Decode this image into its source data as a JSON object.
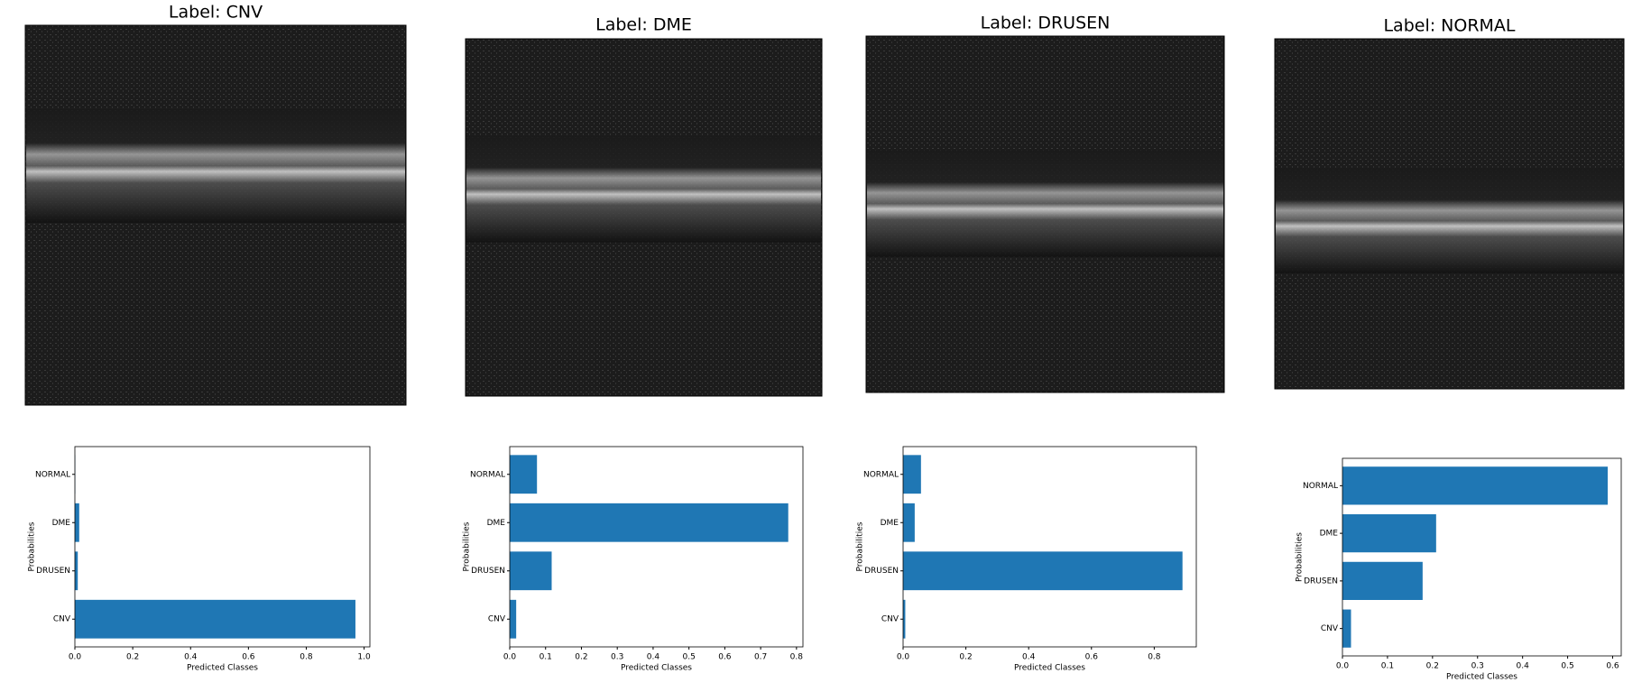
{
  "images": [
    {
      "title": "Label: CNV"
    },
    {
      "title": "Label: DME"
    },
    {
      "title": "Label: DRUSEN"
    },
    {
      "title": "Label: NORMAL"
    }
  ],
  "chart_data": [
    {
      "type": "barh",
      "xlabel": "Predicted Classes",
      "ylabel": "Probabilities",
      "color": "#1f77b4",
      "categories": [
        "CNV",
        "DRUSEN",
        "DME",
        "NORMAL"
      ],
      "values": [
        0.97,
        0.01,
        0.015,
        0.001
      ],
      "xlim": [
        0,
        1.02
      ],
      "xticks": [
        {
          "value": 0,
          "label": "0.0"
        },
        0.2,
        0.4,
        0.6,
        0.8,
        {
          "value": 1,
          "label": "1.0"
        }
      ]
    },
    {
      "type": "barh",
      "xlabel": "Predicted Classes",
      "ylabel": "Probabilities",
      "color": "#1f77b4",
      "categories": [
        "CNV",
        "DRUSEN",
        "DME",
        "NORMAL"
      ],
      "values": [
        0.018,
        0.117,
        0.777,
        0.076
      ],
      "xlim": [
        0,
        0.818
      ],
      "xticks": [
        {
          "value": 0,
          "label": "0.0"
        },
        0.1,
        0.2,
        0.3,
        0.4,
        0.5,
        0.6,
        0.7,
        0.8
      ]
    },
    {
      "type": "barh",
      "xlabel": "Predicted Classes",
      "ylabel": "Probabilities",
      "color": "#1f77b4",
      "categories": [
        "CNV",
        "DRUSEN",
        "DME",
        "NORMAL"
      ],
      "values": [
        0.007,
        0.89,
        0.037,
        0.057
      ],
      "xlim": [
        0,
        0.934
      ],
      "xticks": [
        {
          "value": 0,
          "label": "0.0"
        },
        0.2,
        0.4,
        0.6,
        0.8
      ]
    },
    {
      "type": "barh",
      "xlabel": "Predicted Classes",
      "ylabel": "Probabilities",
      "color": "#1f77b4",
      "categories": [
        "CNV",
        "DRUSEN",
        "DME",
        "NORMAL"
      ],
      "values": [
        0.019,
        0.178,
        0.208,
        0.589
      ],
      "xlim": [
        0,
        0.619
      ],
      "xticks": [
        {
          "value": 0,
          "label": "0.0"
        },
        0.1,
        0.2,
        0.3,
        0.4,
        0.5,
        0.6
      ]
    }
  ]
}
